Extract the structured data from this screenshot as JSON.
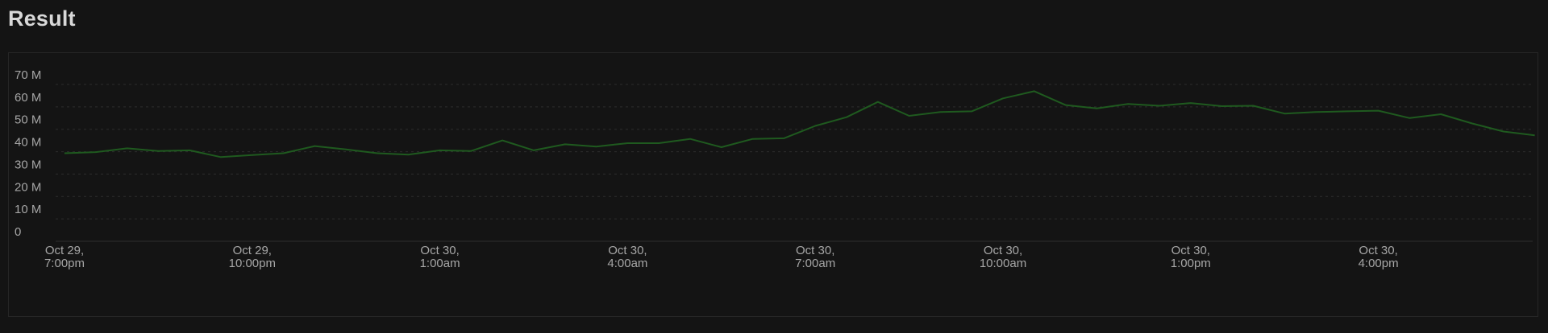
{
  "page": {
    "title": "Result"
  },
  "colors": {
    "background": "#141414",
    "line": "#1f5a1f",
    "grid": "#2c2c2c",
    "axis_text": "#a6a6a6"
  },
  "chart_data": {
    "type": "line",
    "title": "",
    "xlabel": "",
    "ylabel": "",
    "grid": true,
    "y_ticks": [
      "0",
      "10 M",
      "20 M",
      "30 M",
      "40 M",
      "50 M",
      "60 M",
      "70 M"
    ],
    "y_tick_values": [
      0,
      10000000,
      20000000,
      30000000,
      40000000,
      50000000,
      60000000,
      70000000
    ],
    "ylim": [
      0,
      70000000
    ],
    "x_ticks": [
      {
        "line1": "Oct 29,",
        "line2": "7:00pm",
        "hour": 0
      },
      {
        "line1": "Oct 29,",
        "line2": "10:00pm",
        "hour": 3
      },
      {
        "line1": "Oct 30,",
        "line2": "1:00am",
        "hour": 6
      },
      {
        "line1": "Oct 30,",
        "line2": "4:00am",
        "hour": 9
      },
      {
        "line1": "Oct 30,",
        "line2": "7:00am",
        "hour": 12
      },
      {
        "line1": "Oct 30,",
        "line2": "10:00am",
        "hour": 15
      },
      {
        "line1": "Oct 30,",
        "line2": "1:00pm",
        "hour": 18
      },
      {
        "line1": "Oct 30,",
        "line2": "4:00pm",
        "hour": 21
      }
    ],
    "xlim": [
      0,
      23.5
    ],
    "series": [
      {
        "x": [
          0,
          0.5,
          1,
          1.5,
          2,
          2.5,
          3,
          3.5,
          4,
          4.5,
          5,
          5.5,
          6,
          6.5,
          7,
          7.5,
          8,
          8.5,
          9,
          9.5,
          10,
          10.5,
          11,
          11.5,
          12,
          12.5,
          13,
          13.5,
          14,
          14.5,
          15,
          15.5,
          16,
          16.5,
          17,
          17.5,
          18,
          18.5,
          19,
          19.5,
          20,
          20.5,
          21,
          21.5,
          22,
          22.5,
          23,
          23.5
        ],
        "values": [
          39300000,
          39800000,
          41500000,
          40300000,
          40600000,
          37600000,
          38500000,
          39300000,
          42500000,
          41000000,
          39300000,
          38700000,
          40600000,
          40300000,
          45000000,
          40600000,
          43300000,
          42300000,
          43800000,
          43800000,
          45700000,
          42000000,
          45700000,
          46000000,
          51500000,
          55400000,
          62200000,
          56000000,
          57700000,
          58000000,
          63800000,
          67000000,
          60800000,
          59300000,
          61300000,
          60500000,
          61700000,
          60300000,
          60500000,
          57000000,
          57700000,
          58000000,
          58300000,
          55000000,
          56700000,
          52600000,
          49000000,
          47300000
        ]
      }
    ]
  }
}
